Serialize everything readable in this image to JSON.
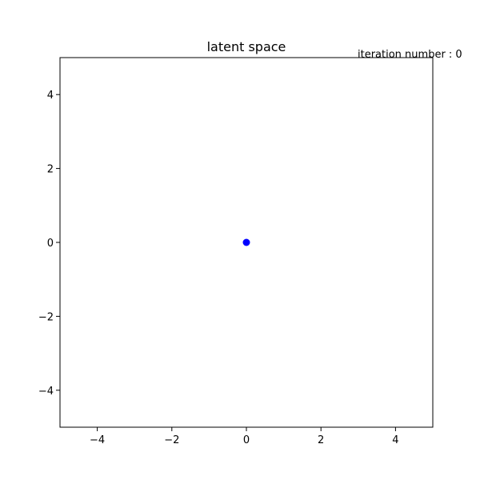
{
  "chart_data": {
    "type": "scatter",
    "title": "latent space",
    "annotation": "iteration number : 0",
    "xlabel": "",
    "ylabel": "",
    "xlim": [
      -5,
      5
    ],
    "ylim": [
      -5,
      5
    ],
    "grid": false,
    "x_ticks": [
      -4,
      -2,
      0,
      2,
      4
    ],
    "x_tick_labels": [
      "−4",
      "−2",
      "0",
      "2",
      "4"
    ],
    "y_ticks": [
      -4,
      -2,
      0,
      2,
      4
    ],
    "y_tick_labels": [
      "−4",
      "−2",
      "0",
      "2",
      "4"
    ],
    "series": [
      {
        "name": "points",
        "color": "#0000ff",
        "points": [
          {
            "x": 0,
            "y": 0
          }
        ]
      }
    ]
  }
}
